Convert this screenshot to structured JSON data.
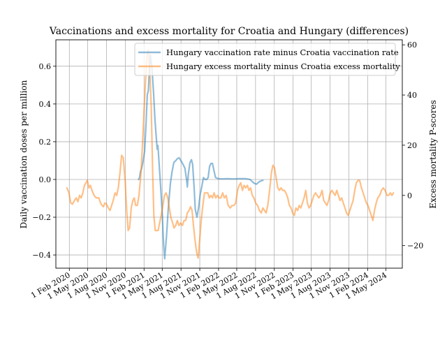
{
  "chart_data": {
    "type": "line",
    "title": "Vaccinations and excess mortality for Croatia and Hungary (differences)",
    "xlabel": "",
    "ylabel_left": "Daily vaccination doses per million",
    "ylabel_right": "Excess mortality P-scores",
    "ylim_left": [
      -0.47,
      0.74
    ],
    "ylim_right": [
      -29,
      62
    ],
    "x_range": [
      "2019-11-27",
      "2024-07-20"
    ],
    "x_tick_labels": [
      "1 Feb 2020",
      "1 May 2020",
      "1 Aug 2020",
      "1 Nov 2020",
      "1 Feb 2021",
      "1 May 2021",
      "1 Aug 2021",
      "1 Nov 2021",
      "1 Feb 2022",
      "1 May 2022",
      "1 Aug 2022",
      "1 Nov 2022",
      "1 Feb 2023",
      "1 May 2023",
      "1 Aug 2023",
      "1 Nov 2023",
      "1 Feb 2024",
      "1 May 2024"
    ],
    "x_tick_dates": [
      "2020-02-01",
      "2020-05-01",
      "2020-08-01",
      "2020-11-01",
      "2021-02-01",
      "2021-05-01",
      "2021-08-01",
      "2021-11-01",
      "2022-02-01",
      "2022-05-01",
      "2022-08-01",
      "2022-11-01",
      "2023-02-01",
      "2023-05-01",
      "2023-08-01",
      "2023-11-01",
      "2024-02-01",
      "2024-05-01"
    ],
    "y_left_ticks": [
      -0.4,
      -0.2,
      0.0,
      0.2,
      0.4,
      0.6
    ],
    "y_left_tick_labels": [
      "−0.4",
      "−0.2",
      "0.0",
      "0.2",
      "0.4",
      "0.6"
    ],
    "y_right_ticks": [
      -20,
      0,
      20,
      40,
      60
    ],
    "y_right_tick_labels": [
      "−20",
      "0",
      "20",
      "40",
      "60"
    ],
    "grid": true,
    "legend_position": "top-right",
    "series": [
      {
        "name": "Hungary vaccination rate minus Croatia vaccination rate",
        "axis": "left",
        "color": "#1f77b4",
        "points": [
          [
            "2021-01-05",
            0.0
          ],
          [
            "2021-01-10",
            0.01
          ],
          [
            "2021-01-14",
            0.04
          ],
          [
            "2021-01-20",
            0.06
          ],
          [
            "2021-01-28",
            0.1
          ],
          [
            "2021-02-04",
            0.15
          ],
          [
            "2021-02-10",
            0.28
          ],
          [
            "2021-02-17",
            0.45
          ],
          [
            "2021-02-22",
            0.47
          ],
          [
            "2021-02-27",
            0.58
          ],
          [
            "2021-03-04",
            0.66
          ],
          [
            "2021-03-11",
            0.6
          ],
          [
            "2021-03-20",
            0.45
          ],
          [
            "2021-03-26",
            0.32
          ],
          [
            "2021-04-02",
            0.22
          ],
          [
            "2021-04-06",
            0.16
          ],
          [
            "2021-04-10",
            0.18
          ],
          [
            "2021-04-16",
            0.08
          ],
          [
            "2021-04-24",
            -0.05
          ],
          [
            "2021-05-02",
            -0.2
          ],
          [
            "2021-05-08",
            -0.35
          ],
          [
            "2021-05-13",
            -0.42
          ],
          [
            "2021-05-22",
            -0.3
          ],
          [
            "2021-05-31",
            -0.15
          ],
          [
            "2021-06-10",
            -0.02
          ],
          [
            "2021-06-18",
            0.04
          ],
          [
            "2021-06-27",
            0.09
          ],
          [
            "2021-07-06",
            0.1
          ],
          [
            "2021-07-14",
            0.11
          ],
          [
            "2021-07-23",
            0.115
          ],
          [
            "2021-08-03",
            0.095
          ],
          [
            "2021-08-11",
            0.08
          ],
          [
            "2021-08-20",
            0.06
          ],
          [
            "2021-08-28",
            0.0
          ],
          [
            "2021-09-01",
            -0.04
          ],
          [
            "2021-09-06",
            0.03
          ],
          [
            "2021-09-14",
            0.09
          ],
          [
            "2021-09-21",
            0.105
          ],
          [
            "2021-09-27",
            0.08
          ],
          [
            "2021-10-04",
            -0.04
          ],
          [
            "2021-10-10",
            -0.16
          ],
          [
            "2021-10-18",
            -0.2
          ],
          [
            "2021-10-26",
            -0.15
          ],
          [
            "2021-11-03",
            -0.08
          ],
          [
            "2021-11-12",
            -0.03
          ],
          [
            "2021-11-19",
            0.01
          ],
          [
            "2021-11-27",
            0.0
          ],
          [
            "2021-12-05",
            0.0
          ],
          [
            "2021-12-12",
            0.01
          ],
          [
            "2021-12-19",
            0.07
          ],
          [
            "2021-12-26",
            0.085
          ],
          [
            "2022-01-02",
            0.085
          ],
          [
            "2022-01-09",
            0.05
          ],
          [
            "2022-01-17",
            0.01
          ],
          [
            "2022-01-27",
            0.005
          ],
          [
            "2022-02-15",
            0.003
          ],
          [
            "2022-03-15",
            0.004
          ],
          [
            "2022-04-15",
            0.003
          ],
          [
            "2022-05-15",
            0.004
          ],
          [
            "2022-06-15",
            0.004
          ],
          [
            "2022-07-05",
            0.0
          ],
          [
            "2022-07-15",
            -0.01
          ],
          [
            "2022-07-25",
            -0.02
          ],
          [
            "2022-08-06",
            -0.025
          ],
          [
            "2022-08-16",
            -0.015
          ],
          [
            "2022-08-28",
            -0.007
          ],
          [
            "2022-09-06",
            -0.005
          ]
        ]
      },
      {
        "name": "Hungary excess mortality minus Croatia excess mortality",
        "axis": "right",
        "color": "#ff7f0e",
        "points": [
          [
            "2020-01-20",
            3
          ],
          [
            "2020-01-30",
            1
          ],
          [
            "2020-02-08",
            -3
          ],
          [
            "2020-02-16",
            -3.5
          ],
          [
            "2020-02-26",
            -2
          ],
          [
            "2020-03-06",
            -1
          ],
          [
            "2020-03-14",
            -2.5
          ],
          [
            "2020-03-22",
            0
          ],
          [
            "2020-03-30",
            -1
          ],
          [
            "2020-04-07",
            1
          ],
          [
            "2020-04-15",
            4
          ],
          [
            "2020-04-22",
            5
          ],
          [
            "2020-04-29",
            6
          ],
          [
            "2020-05-07",
            3
          ],
          [
            "2020-05-14",
            4
          ],
          [
            "2020-05-22",
            2
          ],
          [
            "2020-06-01",
            0
          ],
          [
            "2020-06-12",
            -1
          ],
          [
            "2020-06-24",
            -1
          ],
          [
            "2020-07-03",
            -3
          ],
          [
            "2020-07-10",
            -4
          ],
          [
            "2020-07-17",
            -4.5
          ],
          [
            "2020-07-24",
            -3
          ],
          [
            "2020-08-01",
            -3.5
          ],
          [
            "2020-08-10",
            -5
          ],
          [
            "2020-08-18",
            -6
          ],
          [
            "2020-08-26",
            -4
          ],
          [
            "2020-09-03",
            -2
          ],
          [
            "2020-09-12",
            1
          ],
          [
            "2020-09-20",
            0
          ],
          [
            "2020-09-28",
            3
          ],
          [
            "2020-10-06",
            9
          ],
          [
            "2020-10-14",
            16
          ],
          [
            "2020-10-22",
            15
          ],
          [
            "2020-11-01",
            5
          ],
          [
            "2020-11-08",
            -6
          ],
          [
            "2020-11-15",
            -14
          ],
          [
            "2020-11-22",
            -13
          ],
          [
            "2020-11-30",
            -5
          ],
          [
            "2020-12-08",
            -2
          ],
          [
            "2020-12-15",
            -1
          ],
          [
            "2020-12-22",
            -4
          ],
          [
            "2020-12-30",
            -4
          ],
          [
            "2021-01-07",
            0
          ],
          [
            "2021-01-17",
            9
          ],
          [
            "2021-01-27",
            25
          ],
          [
            "2021-02-06",
            42
          ],
          [
            "2021-02-14",
            55
          ],
          [
            "2021-02-21",
            58
          ],
          [
            "2021-03-01",
            50
          ],
          [
            "2021-03-08",
            36
          ],
          [
            "2021-03-15",
            10
          ],
          [
            "2021-03-21",
            -8
          ],
          [
            "2021-03-28",
            -14
          ],
          [
            "2021-04-04",
            -14
          ],
          [
            "2021-04-11",
            -14
          ],
          [
            "2021-04-18",
            -11
          ],
          [
            "2021-04-26",
            -8
          ],
          [
            "2021-05-04",
            -4
          ],
          [
            "2021-05-12",
            0
          ],
          [
            "2021-05-20",
            1
          ],
          [
            "2021-05-28",
            -1
          ],
          [
            "2021-06-05",
            -5
          ],
          [
            "2021-06-13",
            -9
          ],
          [
            "2021-06-21",
            -11
          ],
          [
            "2021-06-28",
            -13
          ],
          [
            "2021-07-06",
            -12
          ],
          [
            "2021-07-14",
            -10
          ],
          [
            "2021-07-22",
            -12
          ],
          [
            "2021-07-30",
            -11
          ],
          [
            "2021-08-08",
            -12
          ],
          [
            "2021-08-16",
            -10
          ],
          [
            "2021-08-24",
            -10
          ],
          [
            "2021-09-01",
            -7
          ],
          [
            "2021-09-09",
            -6
          ],
          [
            "2021-09-17",
            -4.5
          ],
          [
            "2021-09-24",
            -6
          ],
          [
            "2021-10-01",
            -12
          ],
          [
            "2021-10-09",
            -18
          ],
          [
            "2021-10-17",
            -23
          ],
          [
            "2021-10-24",
            -25
          ],
          [
            "2021-10-31",
            -18
          ],
          [
            "2021-11-08",
            -10
          ],
          [
            "2021-11-16",
            -4
          ],
          [
            "2021-11-24",
            1
          ],
          [
            "2021-12-02",
            1
          ],
          [
            "2021-12-10",
            1
          ],
          [
            "2021-12-18",
            -1
          ],
          [
            "2021-12-25",
            0
          ],
          [
            "2022-01-02",
            -1
          ],
          [
            "2022-01-10",
            1
          ],
          [
            "2022-01-18",
            -1
          ],
          [
            "2022-01-26",
            0
          ],
          [
            "2022-02-03",
            -1
          ],
          [
            "2022-02-12",
            -1
          ],
          [
            "2022-02-21",
            1
          ],
          [
            "2022-03-01",
            -1
          ],
          [
            "2022-03-10",
            0
          ],
          [
            "2022-03-20",
            -4
          ],
          [
            "2022-03-30",
            -5
          ],
          [
            "2022-04-08",
            -4
          ],
          [
            "2022-04-17",
            -4
          ],
          [
            "2022-04-26",
            -3
          ],
          [
            "2022-05-05",
            2
          ],
          [
            "2022-05-13",
            4
          ],
          [
            "2022-05-21",
            5
          ],
          [
            "2022-05-29",
            2
          ],
          [
            "2022-06-06",
            4
          ],
          [
            "2022-06-14",
            3
          ],
          [
            "2022-06-22",
            4
          ],
          [
            "2022-06-30",
            2
          ],
          [
            "2022-07-08",
            3
          ],
          [
            "2022-07-16",
            0
          ],
          [
            "2022-07-24",
            -1
          ],
          [
            "2022-08-02",
            -3
          ],
          [
            "2022-08-11",
            -4
          ],
          [
            "2022-08-20",
            -6
          ],
          [
            "2022-08-29",
            -7
          ],
          [
            "2022-09-06",
            -5
          ],
          [
            "2022-09-14",
            -6
          ],
          [
            "2022-09-22",
            -7
          ],
          [
            "2022-09-30",
            -4
          ],
          [
            "2022-10-09",
            2
          ],
          [
            "2022-10-18",
            9
          ],
          [
            "2022-10-25",
            12
          ],
          [
            "2022-11-02",
            11
          ],
          [
            "2022-11-10",
            7
          ],
          [
            "2022-11-18",
            3
          ],
          [
            "2022-11-26",
            2
          ],
          [
            "2022-12-04",
            3
          ],
          [
            "2022-12-12",
            2
          ],
          [
            "2022-12-20",
            2
          ],
          [
            "2022-12-28",
            1
          ],
          [
            "2023-01-06",
            -1
          ],
          [
            "2023-01-14",
            -4
          ],
          [
            "2023-01-22",
            -5
          ],
          [
            "2023-01-30",
            -7
          ],
          [
            "2023-02-07",
            -8
          ],
          [
            "2023-02-15",
            -5
          ],
          [
            "2023-02-23",
            -6
          ],
          [
            "2023-03-03",
            -4
          ],
          [
            "2023-03-11",
            -5
          ],
          [
            "2023-03-19",
            -3
          ],
          [
            "2023-03-27",
            -1
          ],
          [
            "2023-04-04",
            2
          ],
          [
            "2023-04-12",
            -3
          ],
          [
            "2023-04-20",
            -5
          ],
          [
            "2023-04-28",
            -4
          ],
          [
            "2023-05-06",
            -2
          ],
          [
            "2023-05-14",
            0
          ],
          [
            "2023-05-22",
            1
          ],
          [
            "2023-05-30",
            0
          ],
          [
            "2023-06-07",
            -1
          ],
          [
            "2023-06-15",
            0
          ],
          [
            "2023-06-23",
            2
          ],
          [
            "2023-07-01",
            -2
          ],
          [
            "2023-07-09",
            -3
          ],
          [
            "2023-07-17",
            -4
          ],
          [
            "2023-07-25",
            -2
          ],
          [
            "2023-08-02",
            1
          ],
          [
            "2023-08-10",
            2
          ],
          [
            "2023-08-18",
            1
          ],
          [
            "2023-08-26",
            0
          ],
          [
            "2023-09-03",
            2
          ],
          [
            "2023-09-11",
            0
          ],
          [
            "2023-09-19",
            -2
          ],
          [
            "2023-09-27",
            -1
          ],
          [
            "2023-10-05",
            -3
          ],
          [
            "2023-10-13",
            -5
          ],
          [
            "2023-10-21",
            -7
          ],
          [
            "2023-10-29",
            -8
          ],
          [
            "2023-11-06",
            -6
          ],
          [
            "2023-11-14",
            -4
          ],
          [
            "2023-11-22",
            -2
          ],
          [
            "2023-11-30",
            2
          ],
          [
            "2023-12-08",
            5
          ],
          [
            "2023-12-16",
            6
          ],
          [
            "2023-12-24",
            6
          ],
          [
            "2024-01-02",
            3
          ],
          [
            "2024-01-10",
            1
          ],
          [
            "2024-01-18",
            -1
          ],
          [
            "2024-01-26",
            -3
          ],
          [
            "2024-02-03",
            -4
          ],
          [
            "2024-02-11",
            -6
          ],
          [
            "2024-02-19",
            -8
          ],
          [
            "2024-02-27",
            -10
          ],
          [
            "2024-03-06",
            -6
          ],
          [
            "2024-03-14",
            -3
          ],
          [
            "2024-03-22",
            -1
          ],
          [
            "2024-03-31",
            0
          ],
          [
            "2024-04-09",
            2
          ],
          [
            "2024-04-18",
            3
          ],
          [
            "2024-04-27",
            2
          ],
          [
            "2024-05-06",
            0
          ],
          [
            "2024-05-14",
            0
          ],
          [
            "2024-05-22",
            1
          ],
          [
            "2024-05-30",
            0
          ],
          [
            "2024-06-07",
            1
          ]
        ]
      }
    ]
  }
}
